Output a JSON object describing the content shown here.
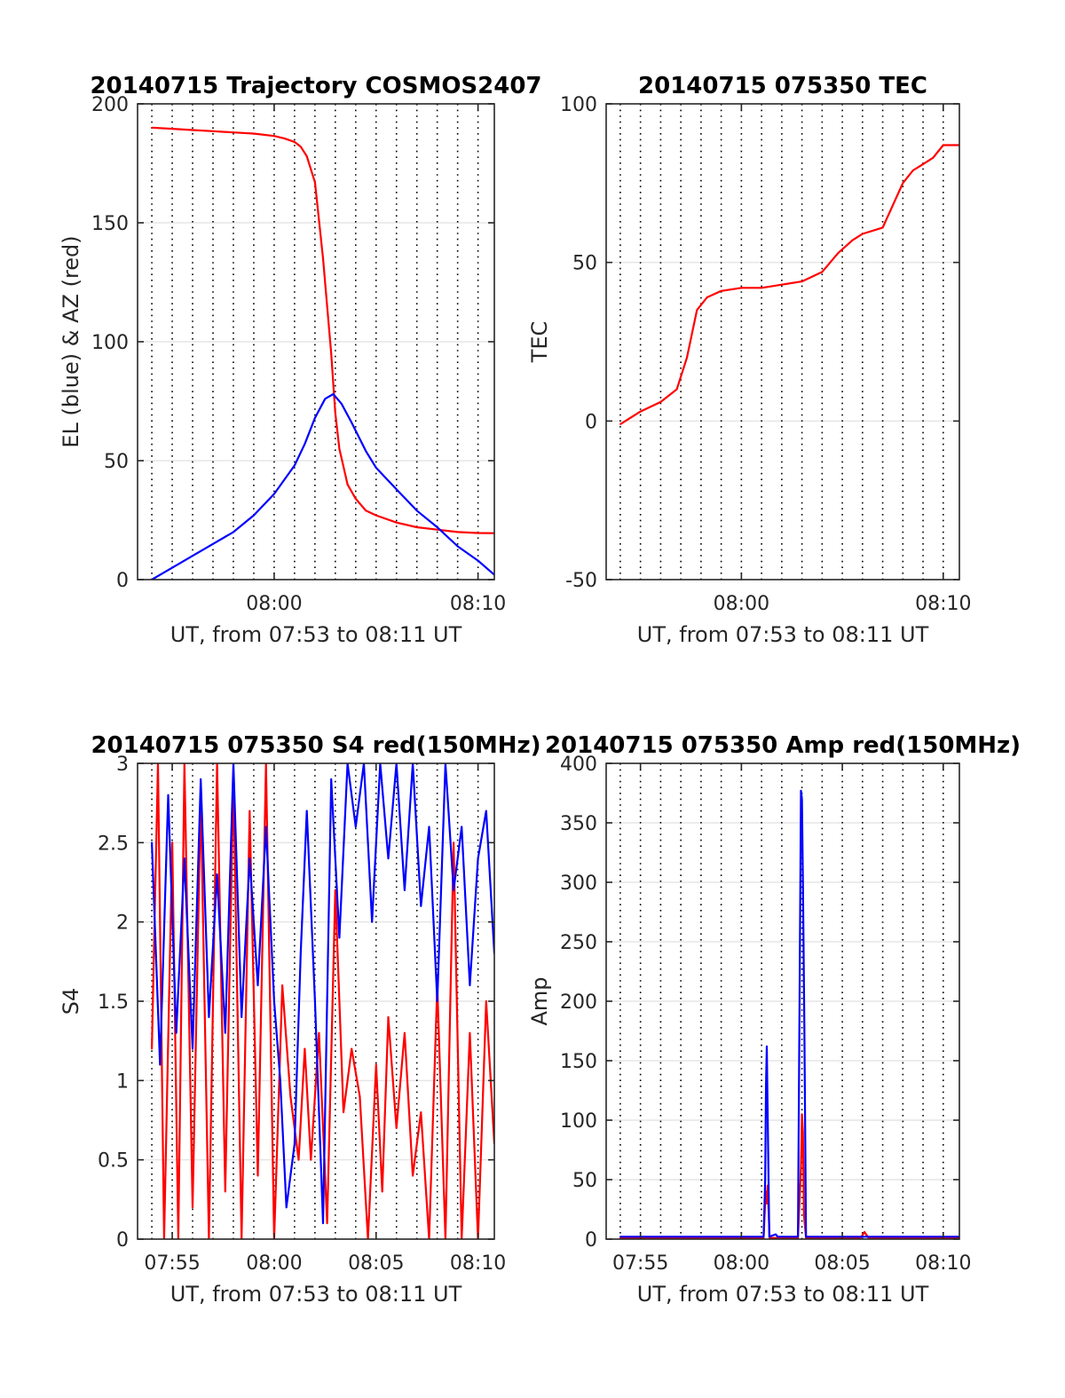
{
  "chart_data": [
    {
      "type": "line",
      "title": "20140715 Trajectory COSMOS2407",
      "xlabel": "UT, from 07:53 to 08:11 UT",
      "ylabel": "EL (blue) & AZ (red)",
      "x_unit": "minutes after 07:50 UT",
      "xlim": [
        3.3,
        20.8
      ],
      "ylim": [
        0,
        200
      ],
      "xticks": [
        10,
        20
      ],
      "xtick_labels": [
        "08:00",
        "08:10"
      ],
      "yticks": [
        0,
        50,
        100,
        150,
        200
      ],
      "grid": "vertical dotted every 60 s, horizontal at y ticks",
      "series": [
        {
          "color": "#ff0000",
          "x": [
            4,
            5,
            6,
            7,
            8,
            9,
            10,
            10.5,
            11,
            11.3,
            11.6,
            12,
            12.4,
            12.8,
            13,
            13.2,
            13.6,
            14,
            14.5,
            15,
            16,
            17,
            18,
            19,
            20,
            20.8
          ],
          "values": [
            190,
            189.5,
            189,
            188.5,
            188,
            187.5,
            186.5,
            185.5,
            184,
            182,
            178,
            167,
            135,
            95,
            70,
            55,
            40,
            34,
            29,
            27,
            24,
            22,
            21,
            20,
            19.6,
            19.5
          ]
        },
        {
          "color": "#0000ff",
          "x": [
            4,
            5,
            6,
            7,
            8,
            9,
            10,
            11,
            11.5,
            12,
            12.5,
            12.9,
            13.3,
            13.8,
            14.5,
            15,
            16,
            17,
            18,
            19,
            20,
            20.8
          ],
          "values": [
            0,
            5,
            10,
            15,
            20,
            27,
            36,
            48,
            57,
            68,
            76,
            78,
            74,
            66,
            54,
            47,
            38,
            29,
            22,
            14,
            8,
            2
          ]
        }
      ]
    },
    {
      "type": "line",
      "title": "20140715 075350 TEC",
      "xlabel": "UT, from 07:53 to 08:11 UT",
      "ylabel": "TEC",
      "x_unit": "minutes after 07:50 UT",
      "xlim": [
        3.3,
        20.8
      ],
      "ylim": [
        -50,
        100
      ],
      "xticks": [
        10,
        20
      ],
      "xtick_labels": [
        "08:00",
        "08:10"
      ],
      "yticks": [
        -50,
        0,
        50,
        100
      ],
      "grid": "vertical dotted every 60 s, horizontal at y ticks",
      "series": [
        {
          "color": "#ff0000",
          "x": [
            4,
            5,
            6,
            6.8,
            7.3,
            7.8,
            8.3,
            9,
            10,
            11,
            12,
            13,
            14,
            14.8,
            15.5,
            16,
            17,
            18,
            18.5,
            19,
            19.5,
            20,
            20.8
          ],
          "values": [
            -1,
            3,
            6,
            10,
            20,
            35,
            39,
            41,
            42,
            42,
            43,
            44,
            47,
            53,
            57,
            59,
            61,
            75,
            79,
            81,
            83,
            87,
            87
          ]
        }
      ]
    },
    {
      "type": "line",
      "title": "20140715 075350 S4 red(150MHz)",
      "xlabel": "UT, from 07:53 to 08:11 UT",
      "ylabel": "S4",
      "x_unit": "minutes after 07:50 UT",
      "xlim": [
        3.3,
        20.8
      ],
      "ylim": [
        0,
        3
      ],
      "xticks": [
        5,
        10,
        15,
        20
      ],
      "xtick_labels": [
        "07:55",
        "08:00",
        "08:05",
        "08:10"
      ],
      "yticks": [
        0,
        0.5,
        1,
        1.5,
        2,
        2.5,
        3
      ],
      "grid": "vertical dotted every 60 s, horizontal at y ticks",
      "series": [
        {
          "color": "#ff0000",
          "x": [
            4,
            4.3,
            4.6,
            5,
            5.3,
            5.6,
            6,
            6.4,
            6.8,
            7.2,
            7.6,
            8,
            8.4,
            8.8,
            9.2,
            9.6,
            10,
            10.4,
            10.8,
            11.2,
            11.5,
            11.8,
            12.2,
            12.6,
            13,
            13.4,
            13.8,
            14.2,
            14.6,
            15,
            15.3,
            15.6,
            16,
            16.4,
            16.8,
            17.2,
            17.6,
            18,
            18.4,
            18.8,
            19.2,
            19.6,
            20,
            20.4,
            20.8
          ],
          "values": [
            1.2,
            3,
            0,
            2.5,
            0,
            3,
            0.2,
            2.8,
            0,
            3,
            0.3,
            2.9,
            0,
            2.7,
            0.4,
            3,
            0,
            1.6,
            0.9,
            0.5,
            1.2,
            0.5,
            1.3,
            0.1,
            2.2,
            0.8,
            1.2,
            0.9,
            0,
            1.1,
            0.3,
            1.4,
            0.7,
            1.3,
            0.4,
            0.8,
            0,
            1.6,
            0,
            2.5,
            0,
            1.3,
            0,
            1.5,
            0.6
          ]
        },
        {
          "color": "#0000ff",
          "x": [
            4,
            4.4,
            4.8,
            5.2,
            5.6,
            6,
            6.4,
            6.8,
            7.2,
            7.6,
            8,
            8.4,
            8.8,
            9.2,
            9.6,
            10,
            10.3,
            10.6,
            11,
            11.3,
            11.6,
            12,
            12.4,
            12.8,
            13.2,
            13.6,
            14,
            14.4,
            14.8,
            15.2,
            15.6,
            16,
            16.4,
            16.8,
            17.2,
            17.6,
            18,
            18.4,
            18.8,
            19.2,
            19.6,
            20,
            20.4,
            20.8
          ],
          "values": [
            2.5,
            1.1,
            2.8,
            1.3,
            2.4,
            1.2,
            2.9,
            1.4,
            2.3,
            1.3,
            3,
            1.4,
            2.4,
            1.6,
            2.6,
            1.5,
            1.0,
            0.2,
            0.6,
            1.8,
            2.7,
            1.5,
            0.1,
            2.9,
            1.9,
            3,
            2.6,
            3,
            2.0,
            3,
            2.4,
            3,
            2.2,
            3,
            2.1,
            2.6,
            1.5,
            3,
            2.2,
            2.6,
            1.6,
            2.4,
            2.7,
            1.8
          ]
        }
      ]
    },
    {
      "type": "line",
      "title": "20140715 075350 Amp red(150MHz)",
      "xlabel": "UT, from 07:53 to 08:11 UT",
      "ylabel": "Amp",
      "x_unit": "minutes after 07:50 UT",
      "xlim": [
        3.3,
        20.8
      ],
      "ylim": [
        0,
        400
      ],
      "xticks": [
        5,
        10,
        15,
        20
      ],
      "xtick_labels": [
        "07:55",
        "08:00",
        "08:05",
        "08:10"
      ],
      "yticks": [
        0,
        50,
        100,
        150,
        200,
        250,
        300,
        350,
        400
      ],
      "grid": "vertical dotted every 60 s, horizontal at y ticks",
      "series": [
        {
          "color": "#ff0000",
          "x": [
            4,
            11.1,
            11.2,
            11.25,
            11.3,
            11.4,
            12.8,
            12.95,
            13.0,
            13.05,
            13.1,
            13.2,
            15.9,
            16.1,
            16.3,
            20.8
          ],
          "values": [
            1,
            1,
            40,
            30,
            45,
            1,
            1,
            60,
            105,
            90,
            20,
            1,
            1,
            6,
            1,
            1
          ]
        },
        {
          "color": "#0000ff",
          "x": [
            4,
            11.1,
            11.18,
            11.22,
            11.26,
            11.3,
            11.38,
            11.7,
            11.8,
            12.8,
            12.88,
            12.95,
            13.0,
            13.05,
            13.12,
            13.2,
            20.8
          ],
          "values": [
            2,
            2,
            50,
            130,
            162,
            110,
            2,
            4,
            2,
            2,
            200,
            377,
            370,
            300,
            180,
            2,
            2
          ]
        }
      ]
    }
  ]
}
